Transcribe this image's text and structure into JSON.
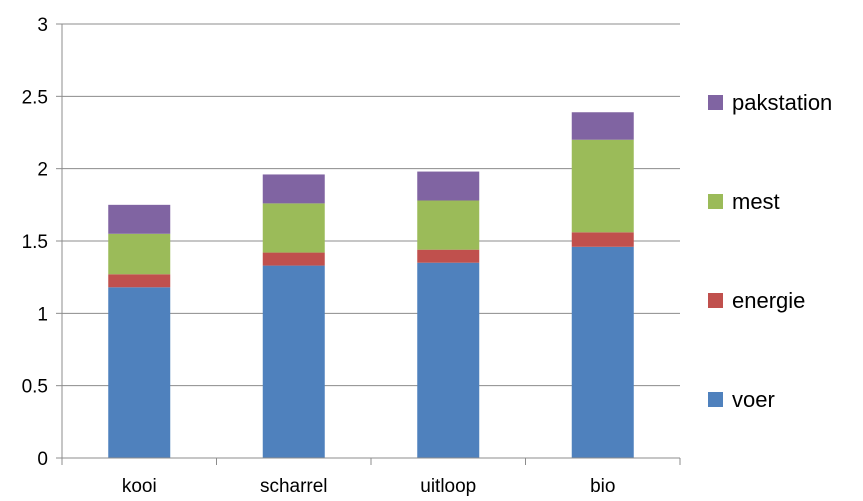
{
  "chart_data": {
    "type": "bar",
    "stacked": true,
    "categories": [
      "kooi",
      "scharrel",
      "uitloop",
      "bio"
    ],
    "series": [
      {
        "name": "voer",
        "color": "#4f81bd",
        "values": [
          1.18,
          1.33,
          1.35,
          1.46
        ]
      },
      {
        "name": "energie",
        "color": "#c0504d",
        "values": [
          0.09,
          0.09,
          0.09,
          0.1
        ]
      },
      {
        "name": "mest",
        "color": "#9bbb59",
        "values": [
          0.28,
          0.34,
          0.34,
          0.64
        ]
      },
      {
        "name": "pakstation",
        "color": "#8064a2",
        "values": [
          0.2,
          0.2,
          0.2,
          0.19
        ]
      }
    ],
    "ylim": [
      0,
      3
    ],
    "yticks": [
      "0",
      "0.5",
      "1",
      "1.5",
      "2",
      "2.5",
      "3"
    ],
    "ytick_values": [
      0,
      0.5,
      1,
      1.5,
      2,
      2.5,
      3
    ],
    "grid": true,
    "legend_position": "right",
    "legend_order": [
      "pakstation",
      "mest",
      "energie",
      "voer"
    ]
  }
}
